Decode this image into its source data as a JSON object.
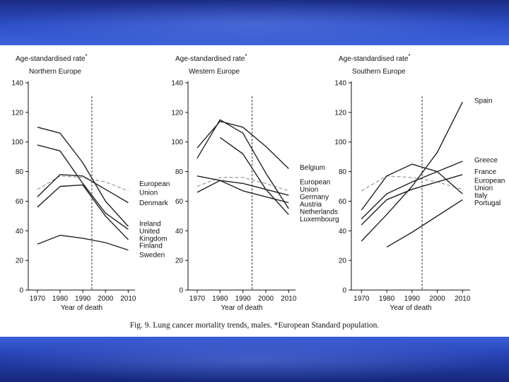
{
  "caption": "Fig. 9.  Lung cancer mortality trends, males. *European Standard population.",
  "colors": {
    "band": "#2a4bc0",
    "line": "#222222",
    "eu_line": "#9a9a9a"
  },
  "chart_data": [
    {
      "type": "line",
      "ylabel": "Age-standardised rate",
      "ylabel_mark": "*",
      "subtitle": "Northern Europe",
      "xlabel": "Year of death",
      "x_ticks": [
        1970,
        1980,
        1990,
        2000,
        2010
      ],
      "y_ticks": [
        0,
        20,
        40,
        60,
        80,
        100,
        120,
        140
      ],
      "xlim": [
        1966,
        2013
      ],
      "ylim": [
        0,
        140
      ],
      "reference_year": 1994,
      "series": [
        {
          "name": "EU (northern panel)",
          "style": "dashed-grey",
          "x": [
            1970,
            1980,
            1990,
            2000,
            2010
          ],
          "y": [
            68,
            77,
            76,
            73,
            67
          ]
        },
        {
          "name": "Denmark",
          "x": [
            1970,
            1980,
            1990,
            2000,
            2010
          ],
          "y": [
            63,
            78,
            77,
            68,
            59
          ]
        },
        {
          "name": "Ireland",
          "x": [
            1970,
            1980,
            1990,
            2000,
            2010
          ],
          "y": [
            110,
            106,
            86,
            60,
            43
          ]
        },
        {
          "name": "United Kingdom",
          "x": [
            1970,
            1980,
            1990,
            2000,
            2010
          ],
          "y": [
            98,
            94,
            72,
            52,
            41
          ]
        },
        {
          "name": "Finland",
          "x": [
            1970,
            1980,
            1990,
            2000,
            2010
          ],
          "y": [
            56,
            70,
            71,
            50,
            34
          ]
        },
        {
          "name": "Sweden",
          "x": [
            1970,
            1980,
            1990,
            2000,
            2010
          ],
          "y": [
            31,
            37,
            35,
            32,
            27
          ]
        }
      ],
      "labels": [
        {
          "text": "European",
          "y": 72
        },
        {
          "text": "Union",
          "y": 66
        },
        {
          "text": "Denmark",
          "y": 59
        },
        {
          "text": "Ireland",
          "y": 45
        },
        {
          "text": "United",
          "y": 40
        },
        {
          "text": "Kingdom",
          "y": 35
        },
        {
          "text": "Finland",
          "y": 30
        },
        {
          "text": "Sweden",
          "y": 24
        }
      ]
    },
    {
      "type": "line",
      "ylabel": "Age-standardised rate",
      "ylabel_mark": "*",
      "subtitle": "Western Europe",
      "xlabel": "Year of death",
      "x_ticks": [
        1970,
        1980,
        1990,
        2000,
        2010
      ],
      "y_ticks": [
        0,
        20,
        40,
        60,
        80,
        100,
        120,
        140
      ],
      "xlim": [
        1966,
        2013
      ],
      "ylim": [
        0,
        140
      ],
      "reference_year": 1994,
      "series": [
        {
          "name": "EU (western panel)",
          "style": "dashed-grey",
          "x": [
            1970,
            1980,
            1990,
            2000,
            2010
          ],
          "y": [
            70,
            76,
            76,
            72,
            67
          ]
        },
        {
          "name": "Belgium",
          "x": [
            1970,
            1980,
            1990,
            2000,
            2010
          ],
          "y": [
            96,
            114,
            110,
            97,
            82
          ]
        },
        {
          "name": "Netherlands",
          "x": [
            1970,
            1980,
            1990,
            2000,
            2010
          ],
          "y": [
            89,
            115,
            106,
            79,
            55
          ]
        },
        {
          "name": "Luxembourg",
          "x": [
            1980,
            1990,
            2000,
            2010
          ],
          "y": [
            103,
            92,
            68,
            51
          ]
        },
        {
          "name": "Germany",
          "x": [
            1970,
            1980,
            1990,
            2000,
            2010
          ],
          "y": [
            66,
            74,
            72,
            68,
            64
          ]
        },
        {
          "name": "Austria",
          "x": [
            1970,
            1980,
            1990,
            2000,
            2010
          ],
          "y": [
            77,
            74,
            67,
            63,
            59
          ]
        }
      ],
      "labels": [
        {
          "text": "Belgium",
          "y": 83
        },
        {
          "text": "European",
          "y": 73
        },
        {
          "text": "Union",
          "y": 68
        },
        {
          "text": "Germany",
          "y": 63
        },
        {
          "text": "Austria",
          "y": 58
        },
        {
          "text": "Netherlands",
          "y": 53
        },
        {
          "text": "Luxembourg",
          "y": 48
        }
      ]
    },
    {
      "type": "line",
      "ylabel": "Age-standardised rate",
      "ylabel_mark": "*",
      "subtitle": "Southern Europe",
      "xlabel": "Year of death",
      "x_ticks": [
        1970,
        1980,
        1990,
        2000,
        2010
      ],
      "y_ticks": [
        0,
        20,
        40,
        60,
        80,
        100,
        120,
        140
      ],
      "xlim": [
        1966,
        2013
      ],
      "ylim": [
        0,
        140
      ],
      "reference_year": 1994,
      "series": [
        {
          "name": "EU (southern panel)",
          "style": "dashed-grey",
          "x": [
            1970,
            1980,
            1990,
            2000,
            2010
          ],
          "y": [
            67,
            77,
            76,
            73,
            68
          ]
        },
        {
          "name": "Spain",
          "x": [
            1970,
            1980,
            1990,
            2000,
            2010
          ],
          "y": [
            33,
            51,
            70,
            93,
            127
          ]
        },
        {
          "name": "Greece",
          "x": [
            1970,
            1980,
            1990,
            2000,
            2010
          ],
          "y": [
            48,
            65,
            73,
            80,
            87
          ]
        },
        {
          "name": "France",
          "x": [
            1970,
            1980,
            1990,
            2000,
            2010
          ],
          "y": [
            44,
            61,
            68,
            73,
            78
          ]
        },
        {
          "name": "Italy",
          "x": [
            1970,
            1980,
            1990,
            2000,
            2010
          ],
          "y": [
            54,
            77,
            85,
            80,
            65
          ]
        },
        {
          "name": "Portugal",
          "x": [
            1980,
            1990,
            2000,
            2010
          ],
          "y": [
            29,
            39,
            50,
            61
          ]
        }
      ],
      "labels": [
        {
          "text": "Spain",
          "y": 128
        },
        {
          "text": "Greece",
          "y": 88
        },
        {
          "text": "France",
          "y": 80
        },
        {
          "text": "European",
          "y": 74
        },
        {
          "text": "Union",
          "y": 69
        },
        {
          "text": "Italy",
          "y": 64
        },
        {
          "text": "Portugal",
          "y": 59
        }
      ]
    }
  ]
}
